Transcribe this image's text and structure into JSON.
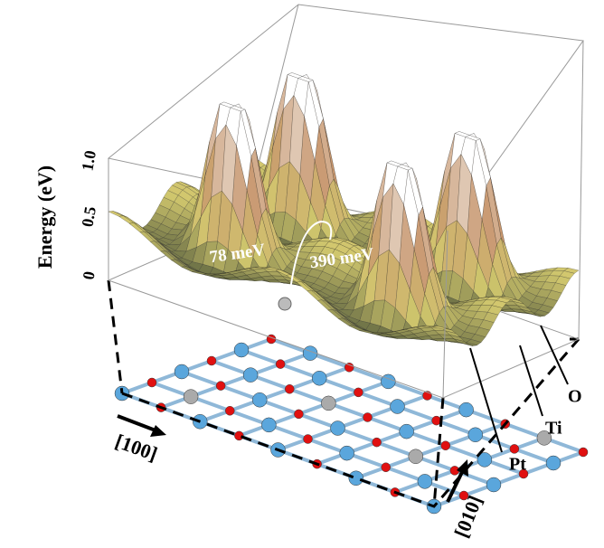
{
  "axis": {
    "label": "Energy (eV)",
    "ticks": [
      "0",
      "0.5",
      "1.0"
    ]
  },
  "annotations": {
    "barrier_low": "78 meV",
    "barrier_high": "390 meV"
  },
  "atoms": {
    "pt": "Pt",
    "ti": "Ti",
    "o": "O"
  },
  "directions": {
    "x": "[100]",
    "y": "[010]"
  }
}
